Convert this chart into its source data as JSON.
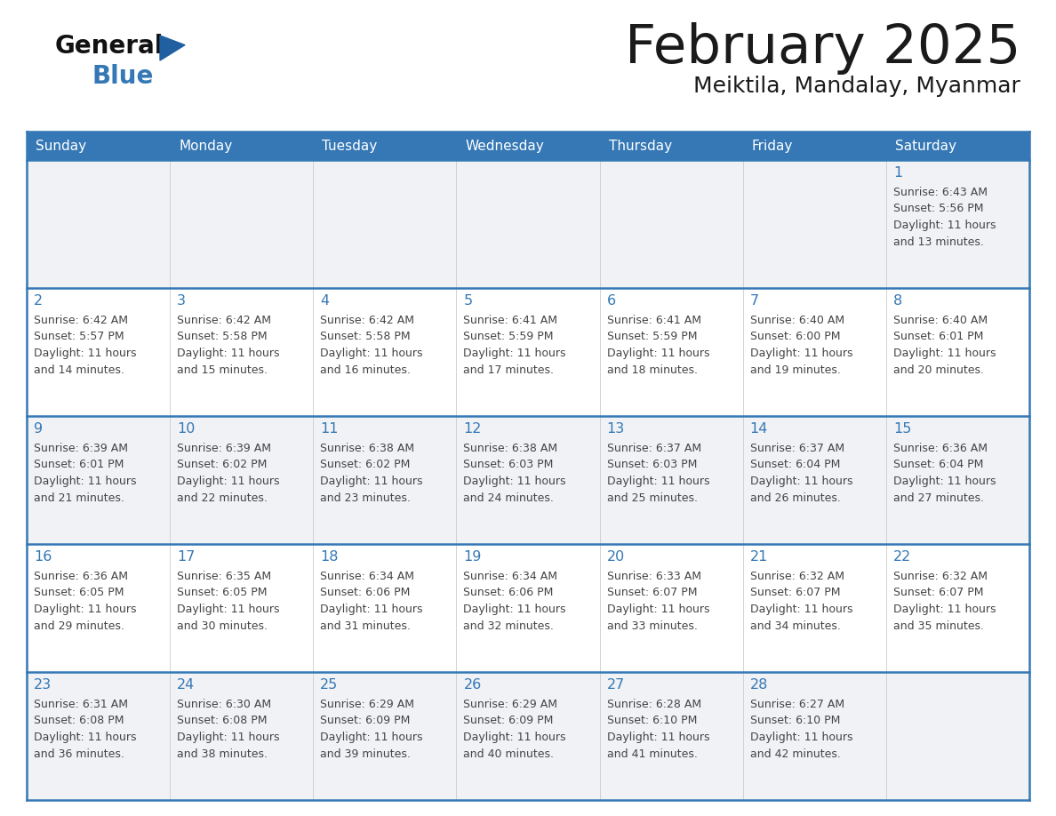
{
  "title": "February 2025",
  "subtitle": "Meiktila, Mandalay, Myanmar",
  "days_of_week": [
    "Sunday",
    "Monday",
    "Tuesday",
    "Wednesday",
    "Thursday",
    "Friday",
    "Saturday"
  ],
  "header_bg_color": "#3578b5",
  "header_text_color": "#ffffff",
  "cell_bg_light": "#f0f2f5",
  "cell_bg_white": "#ffffff",
  "day_text_color": "#3578b5",
  "info_text_color": "#444444",
  "border_color": "#3578b5",
  "title_color": "#1a1a1a",
  "subtitle_color": "#1a1a1a",
  "logo_general_color": "#111111",
  "logo_blue_color": "#3578b5",
  "logo_triangle_color": "#2060a0",
  "calendar_data": [
    {
      "day": 1,
      "row": 0,
      "col": 6,
      "sunrise": "6:43 AM",
      "sunset": "5:56 PM",
      "daylight_hours": 11,
      "daylight_minutes": 13
    },
    {
      "day": 2,
      "row": 1,
      "col": 0,
      "sunrise": "6:42 AM",
      "sunset": "5:57 PM",
      "daylight_hours": 11,
      "daylight_minutes": 14
    },
    {
      "day": 3,
      "row": 1,
      "col": 1,
      "sunrise": "6:42 AM",
      "sunset": "5:58 PM",
      "daylight_hours": 11,
      "daylight_minutes": 15
    },
    {
      "day": 4,
      "row": 1,
      "col": 2,
      "sunrise": "6:42 AM",
      "sunset": "5:58 PM",
      "daylight_hours": 11,
      "daylight_minutes": 16
    },
    {
      "day": 5,
      "row": 1,
      "col": 3,
      "sunrise": "6:41 AM",
      "sunset": "5:59 PM",
      "daylight_hours": 11,
      "daylight_minutes": 17
    },
    {
      "day": 6,
      "row": 1,
      "col": 4,
      "sunrise": "6:41 AM",
      "sunset": "5:59 PM",
      "daylight_hours": 11,
      "daylight_minutes": 18
    },
    {
      "day": 7,
      "row": 1,
      "col": 5,
      "sunrise": "6:40 AM",
      "sunset": "6:00 PM",
      "daylight_hours": 11,
      "daylight_minutes": 19
    },
    {
      "day": 8,
      "row": 1,
      "col": 6,
      "sunrise": "6:40 AM",
      "sunset": "6:01 PM",
      "daylight_hours": 11,
      "daylight_minutes": 20
    },
    {
      "day": 9,
      "row": 2,
      "col": 0,
      "sunrise": "6:39 AM",
      "sunset": "6:01 PM",
      "daylight_hours": 11,
      "daylight_minutes": 21
    },
    {
      "day": 10,
      "row": 2,
      "col": 1,
      "sunrise": "6:39 AM",
      "sunset": "6:02 PM",
      "daylight_hours": 11,
      "daylight_minutes": 22
    },
    {
      "day": 11,
      "row": 2,
      "col": 2,
      "sunrise": "6:38 AM",
      "sunset": "6:02 PM",
      "daylight_hours": 11,
      "daylight_minutes": 23
    },
    {
      "day": 12,
      "row": 2,
      "col": 3,
      "sunrise": "6:38 AM",
      "sunset": "6:03 PM",
      "daylight_hours": 11,
      "daylight_minutes": 24
    },
    {
      "day": 13,
      "row": 2,
      "col": 4,
      "sunrise": "6:37 AM",
      "sunset": "6:03 PM",
      "daylight_hours": 11,
      "daylight_minutes": 25
    },
    {
      "day": 14,
      "row": 2,
      "col": 5,
      "sunrise": "6:37 AM",
      "sunset": "6:04 PM",
      "daylight_hours": 11,
      "daylight_minutes": 26
    },
    {
      "day": 15,
      "row": 2,
      "col": 6,
      "sunrise": "6:36 AM",
      "sunset": "6:04 PM",
      "daylight_hours": 11,
      "daylight_minutes": 27
    },
    {
      "day": 16,
      "row": 3,
      "col": 0,
      "sunrise": "6:36 AM",
      "sunset": "6:05 PM",
      "daylight_hours": 11,
      "daylight_minutes": 29
    },
    {
      "day": 17,
      "row": 3,
      "col": 1,
      "sunrise": "6:35 AM",
      "sunset": "6:05 PM",
      "daylight_hours": 11,
      "daylight_minutes": 30
    },
    {
      "day": 18,
      "row": 3,
      "col": 2,
      "sunrise": "6:34 AM",
      "sunset": "6:06 PM",
      "daylight_hours": 11,
      "daylight_minutes": 31
    },
    {
      "day": 19,
      "row": 3,
      "col": 3,
      "sunrise": "6:34 AM",
      "sunset": "6:06 PM",
      "daylight_hours": 11,
      "daylight_minutes": 32
    },
    {
      "day": 20,
      "row": 3,
      "col": 4,
      "sunrise": "6:33 AM",
      "sunset": "6:07 PM",
      "daylight_hours": 11,
      "daylight_minutes": 33
    },
    {
      "day": 21,
      "row": 3,
      "col": 5,
      "sunrise": "6:32 AM",
      "sunset": "6:07 PM",
      "daylight_hours": 11,
      "daylight_minutes": 34
    },
    {
      "day": 22,
      "row": 3,
      "col": 6,
      "sunrise": "6:32 AM",
      "sunset": "6:07 PM",
      "daylight_hours": 11,
      "daylight_minutes": 35
    },
    {
      "day": 23,
      "row": 4,
      "col": 0,
      "sunrise": "6:31 AM",
      "sunset": "6:08 PM",
      "daylight_hours": 11,
      "daylight_minutes": 36
    },
    {
      "day": 24,
      "row": 4,
      "col": 1,
      "sunrise": "6:30 AM",
      "sunset": "6:08 PM",
      "daylight_hours": 11,
      "daylight_minutes": 38
    },
    {
      "day": 25,
      "row": 4,
      "col": 2,
      "sunrise": "6:29 AM",
      "sunset": "6:09 PM",
      "daylight_hours": 11,
      "daylight_minutes": 39
    },
    {
      "day": 26,
      "row": 4,
      "col": 3,
      "sunrise": "6:29 AM",
      "sunset": "6:09 PM",
      "daylight_hours": 11,
      "daylight_minutes": 40
    },
    {
      "day": 27,
      "row": 4,
      "col": 4,
      "sunrise": "6:28 AM",
      "sunset": "6:10 PM",
      "daylight_hours": 11,
      "daylight_minutes": 41
    },
    {
      "day": 28,
      "row": 4,
      "col": 5,
      "sunrise": "6:27 AM",
      "sunset": "6:10 PM",
      "daylight_hours": 11,
      "daylight_minutes": 42
    }
  ]
}
